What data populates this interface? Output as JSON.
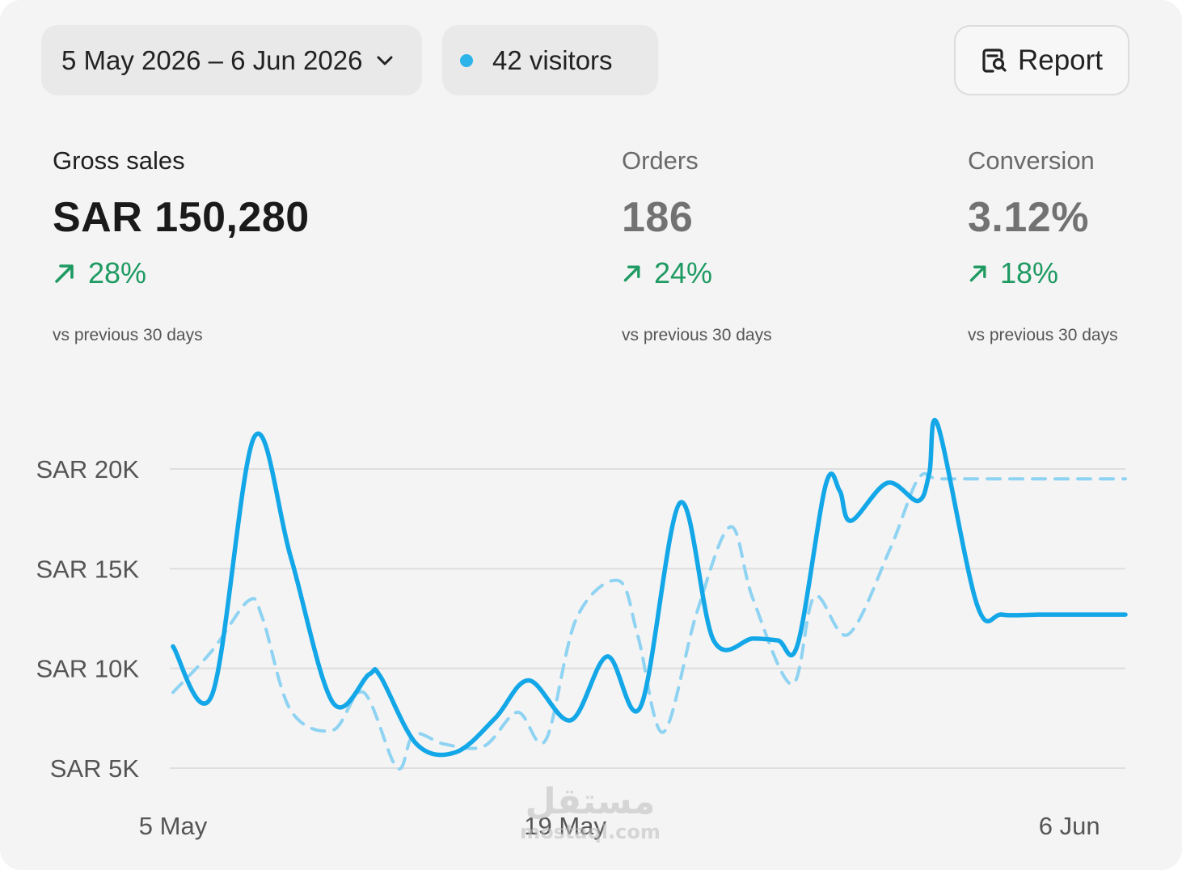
{
  "toolbar": {
    "date_range": "5 May 2026 – 6 Jun 2026",
    "visitors": "42 visitors",
    "visitors_dot_color": "#2bb3ea",
    "report_label": "Report"
  },
  "metrics": [
    {
      "label": "Gross sales",
      "value": "SAR 150,280",
      "change": "28%",
      "note": "vs previous 30 days"
    },
    {
      "label": "Orders",
      "value": "186",
      "change": "24%",
      "note": "vs previous 30 days"
    },
    {
      "label": "Conversion",
      "value": "3.12%",
      "change": "18%",
      "note": "vs previous 30 days"
    }
  ],
  "colors": {
    "accent": "#13a7e8",
    "accent_light": "#8fd3f2",
    "positive": "#1e9a62",
    "grid": "#dedede"
  },
  "chart_data": {
    "type": "line",
    "yticks": [
      {
        "value": 20000,
        "label": "SAR 20K"
      },
      {
        "value": 15000,
        "label": "SAR 15K"
      },
      {
        "value": 10000,
        "label": "SAR 10K"
      },
      {
        "value": 5000,
        "label": "SAR 5K"
      }
    ],
    "xticks": [
      {
        "day": 0,
        "label": "5 May"
      },
      {
        "day": 14,
        "label": "19 May"
      },
      {
        "day": 32,
        "label": "6 Jun"
      }
    ],
    "ylim": [
      5000,
      20000
    ],
    "xlim": [
      0,
      34
    ],
    "grid": true,
    "series": [
      {
        "style": "solid",
        "x": [
          0,
          1.4,
          2.9,
          4.2,
          5.7,
          7,
          7.4,
          8.7,
          10.1,
          11.5,
          12.7,
          14.2,
          15.5,
          16.7,
          18.1,
          19.3,
          20.7,
          21.6,
          22.3,
          23.3,
          23.8,
          24.2,
          25.5,
          26.6,
          27,
          27.3,
          28.7,
          29.6,
          30.9,
          31.5,
          32.2,
          33.2,
          34
        ],
        "y": [
          11100,
          8700,
          21600,
          15600,
          8300,
          9700,
          9600,
          6200,
          5800,
          7500,
          9400,
          7400,
          10600,
          8100,
          18300,
          11400,
          11500,
          11400,
          11200,
          19200,
          18900,
          17400,
          19300,
          18400,
          19800,
          22200,
          13200,
          12700,
          12700,
          12700,
          12700,
          12700,
          12700
        ]
      },
      {
        "style": "dashed",
        "x": [
          0,
          1.4,
          2.7,
          3.2,
          4.2,
          5.7,
          6.8,
          8,
          8.6,
          9.7,
          11.1,
          12.3,
          13.3,
          14.4,
          15.9,
          16.6,
          17.5,
          18.7,
          19.9,
          20.7,
          22.1,
          22.9,
          24.1,
          25.6,
          26.6,
          27.3,
          28.7,
          29.5,
          30.4,
          31.2,
          32.1,
          33,
          34
        ],
        "y": [
          8800,
          10900,
          13400,
          12500,
          7900,
          6900,
          8800,
          5000,
          6700,
          6200,
          6100,
          7800,
          6400,
          12500,
          14400,
          11600,
          6800,
          12800,
          17100,
          13500,
          9200,
          13600,
          11700,
          16000,
          19500,
          19500,
          19500,
          19500,
          19500,
          19500,
          19500,
          19500,
          19500
        ]
      }
    ]
  },
  "watermark": {
    "arabic": "مستقل",
    "latin": "mostaql.com"
  }
}
